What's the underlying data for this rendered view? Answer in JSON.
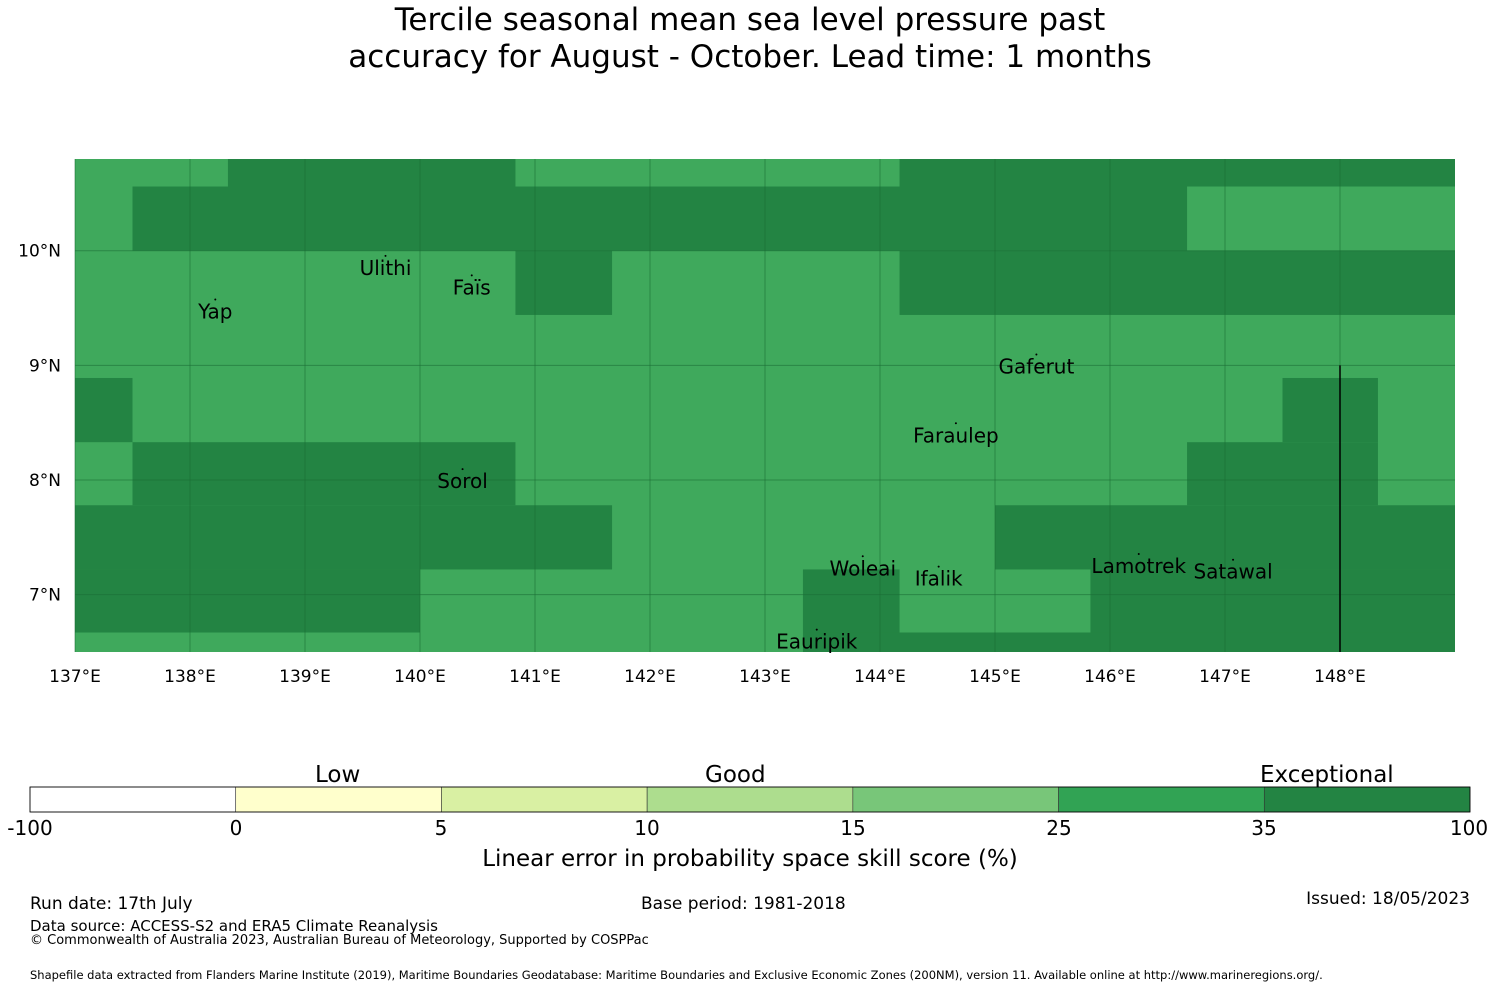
{
  "title": {
    "line1": "Tercile seasonal mean sea level pressure past",
    "line2": "accuracy for August - October. Lead time: 1 months"
  },
  "map": {
    "lon_range": [
      137.0,
      149.0
    ],
    "lat_range": [
      6.5,
      10.8
    ],
    "x_ticks": [
      "137°E",
      "138°E",
      "139°E",
      "140°E",
      "141°E",
      "142°E",
      "143°E",
      "144°E",
      "145°E",
      "146°E",
      "147°E",
      "148°E"
    ],
    "y_ticks": [
      "10°N",
      "9°N",
      "8°N",
      "7°N"
    ],
    "colors": {
      "good_high": "#3fa95c",
      "exceptional": "#238443"
    },
    "exceptional_cells": [
      {
        "lon": [
          138.33,
          140.83
        ],
        "lat": [
          10.56,
          10.8
        ]
      },
      {
        "lon": [
          144.17,
          149.0
        ],
        "lat": [
          10.56,
          10.8
        ]
      },
      {
        "lon": [
          137.5,
          146.67
        ],
        "lat": [
          10.0,
          10.56
        ]
      },
      {
        "lon": [
          140.83,
          141.67
        ],
        "lat": [
          9.44,
          10.0
        ]
      },
      {
        "lon": [
          144.17,
          149.0
        ],
        "lat": [
          9.44,
          10.0
        ]
      },
      {
        "lon": [
          137.0,
          137.5
        ],
        "lat": [
          8.33,
          8.89
        ]
      },
      {
        "lon": [
          147.5,
          148.33
        ],
        "lat": [
          8.33,
          8.89
        ]
      },
      {
        "lon": [
          137.5,
          140.83
        ],
        "lat": [
          7.78,
          8.33
        ]
      },
      {
        "lon": [
          146.67,
          148.33
        ],
        "lat": [
          7.78,
          8.33
        ]
      },
      {
        "lon": [
          137.0,
          141.67
        ],
        "lat": [
          7.22,
          7.78
        ]
      },
      {
        "lon": [
          145.0,
          149.0
        ],
        "lat": [
          7.22,
          7.78
        ]
      },
      {
        "lon": [
          137.0,
          140.0
        ],
        "lat": [
          6.67,
          7.22
        ]
      },
      {
        "lon": [
          143.33,
          144.17
        ],
        "lat": [
          6.67,
          7.22
        ]
      },
      {
        "lon": [
          145.83,
          149.0
        ],
        "lat": [
          6.67,
          7.22
        ]
      },
      {
        "lon": [
          143.33,
          149.0
        ],
        "lat": [
          6.5,
          6.67
        ]
      }
    ],
    "islands": [
      {
        "name": "Ulithi",
        "lon": 139.7,
        "lat": 9.85
      },
      {
        "name": "Faïs",
        "lon": 140.45,
        "lat": 9.68
      },
      {
        "name": "Yap",
        "lon": 138.22,
        "lat": 9.47
      },
      {
        "name": "Gaferut",
        "lon": 145.36,
        "lat": 8.99
      },
      {
        "name": "Faraulep",
        "lon": 144.66,
        "lat": 8.39
      },
      {
        "name": "Sorol",
        "lon": 140.37,
        "lat": 7.99
      },
      {
        "name": "Woleai",
        "lon": 143.85,
        "lat": 7.23
      },
      {
        "name": "Ifalik",
        "lon": 144.51,
        "lat": 7.14
      },
      {
        "name": "Lamotrek",
        "lon": 146.25,
        "lat": 7.25
      },
      {
        "name": "Satawal",
        "lon": 147.07,
        "lat": 7.2
      },
      {
        "name": "Eauripik",
        "lon": 143.45,
        "lat": 6.59
      }
    ],
    "boundary_line": {
      "lon": 148.0,
      "lat": [
        6.5,
        9.0
      ]
    }
  },
  "colorbar": {
    "categories": [
      "Low",
      "Good",
      "Exceptional"
    ],
    "colors": [
      "#ffffff",
      "#ffffcc",
      "#d9f0a3",
      "#addd8e",
      "#78c679",
      "#31a354",
      "#238443"
    ],
    "ticks": [
      "-100",
      "0",
      "5",
      "10",
      "15",
      "25",
      "35",
      "100"
    ],
    "label": "Linear error in probability space skill score (%)"
  },
  "footer": {
    "run_date": "Run date: 17th July",
    "base_period": "Base period: 1981-2018",
    "issued": "Issued: 18/05/2023",
    "data_source": "Data source: ACCESS-S2 and ERA5 Climate Reanalysis",
    "copyright": "© Commonwealth of Australia 2023, Australian Bureau of Meteorology, Supported by COSPPac",
    "shapefile": "Shapefile data extracted from Flanders Marine Institute (2019), Maritime Boundaries Geodatabase: Maritime Boundaries and Exclusive Economic Zones (200NM), version 11. Available online at http://www.marineregions.org/."
  }
}
